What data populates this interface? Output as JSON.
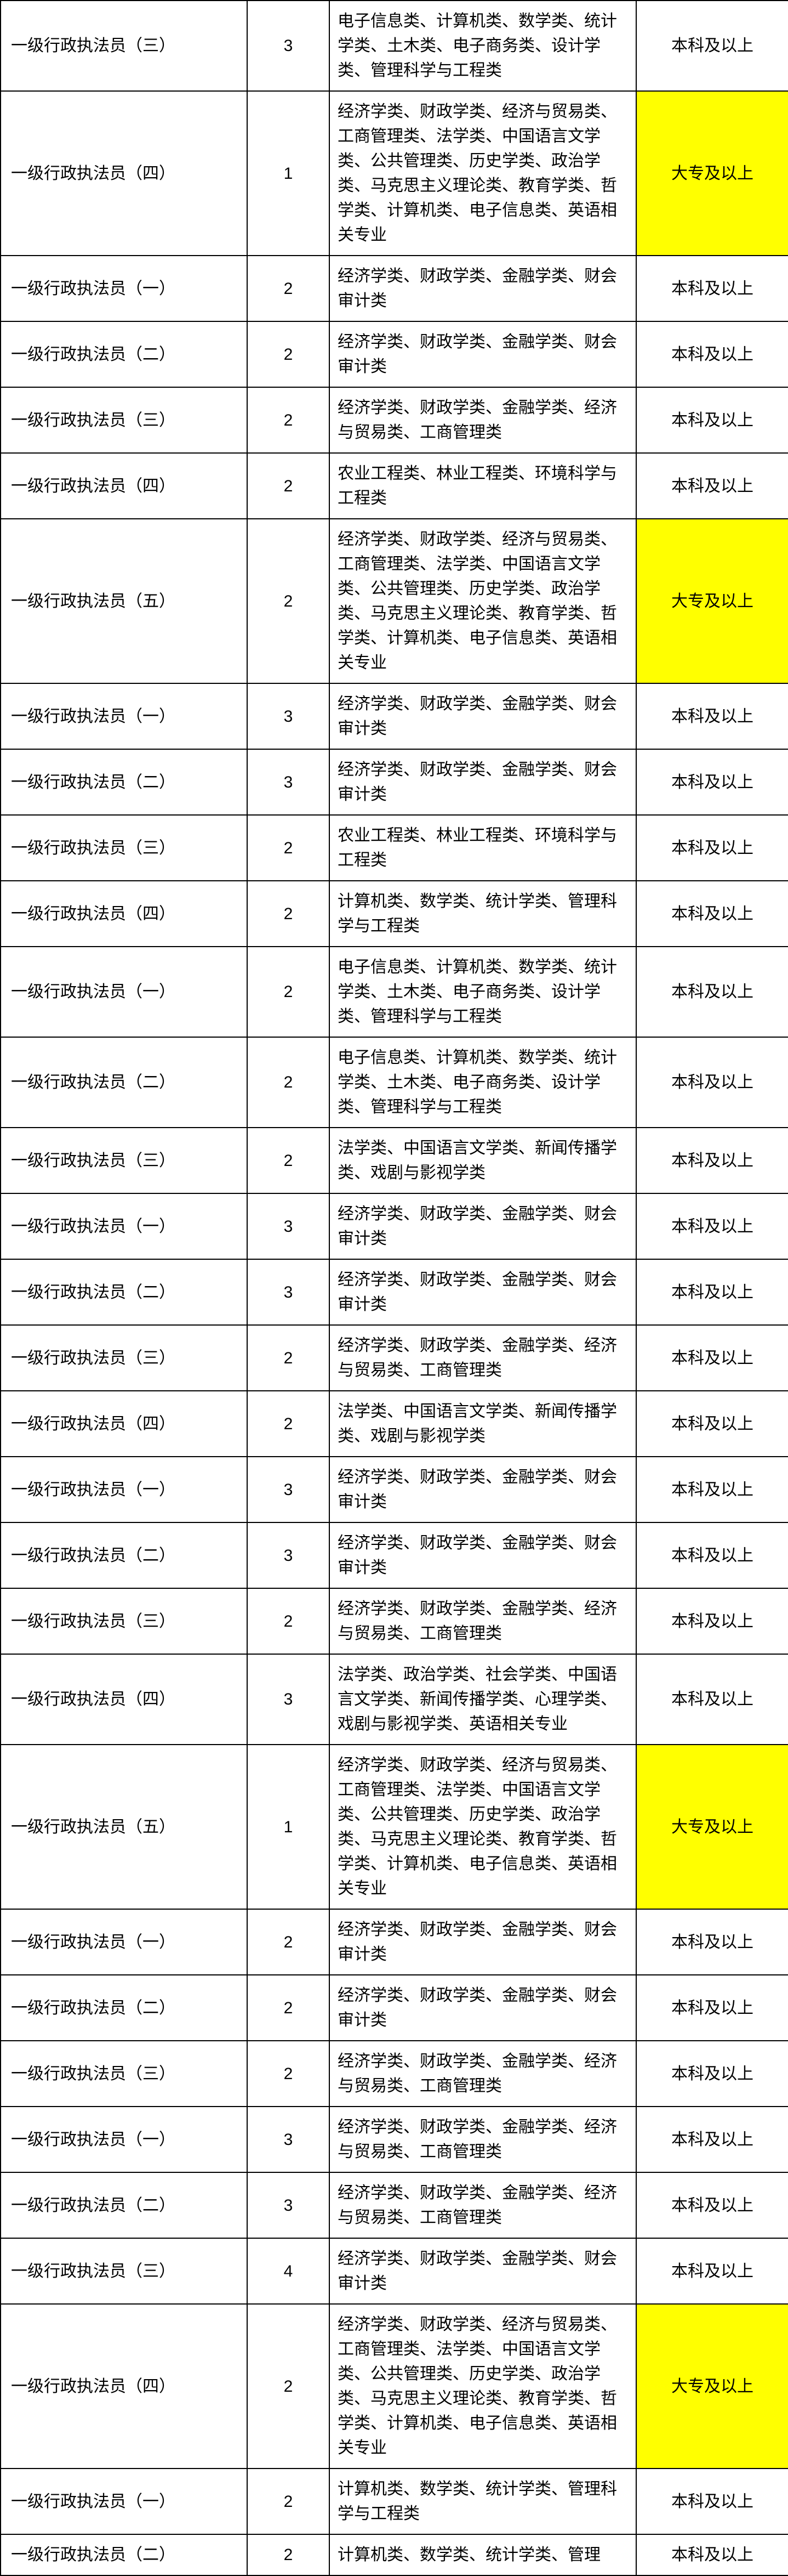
{
  "rows": [
    {
      "position": "一级行政执法员（三）",
      "count": "3",
      "majors": "电子信息类、计算机类、数学类、统计学类、土木类、电子商务类、设计学类、管理科学与工程类",
      "edu": "本科及以上",
      "highlight": false
    },
    {
      "position": "一级行政执法员（四）",
      "count": "1",
      "majors": "经济学类、财政学类、经济与贸易类、工商管理类、法学类、中国语言文学类、公共管理类、历史学类、政治学类、马克思主义理论类、教育学类、哲学类、计算机类、电子信息类、英语相关专业",
      "edu": "大专及以上",
      "highlight": true
    },
    {
      "position": "一级行政执法员（一）",
      "count": "2",
      "majors": "经济学类、财政学类、金融学类、财会审计类",
      "edu": "本科及以上",
      "highlight": false
    },
    {
      "position": "一级行政执法员（二）",
      "count": "2",
      "majors": "经济学类、财政学类、金融学类、财会审计类",
      "edu": "本科及以上",
      "highlight": false
    },
    {
      "position": "一级行政执法员（三）",
      "count": "2",
      "majors": "经济学类、财政学类、金融学类、经济与贸易类、工商管理类",
      "edu": "本科及以上",
      "highlight": false
    },
    {
      "position": "一级行政执法员（四）",
      "count": "2",
      "majors": "农业工程类、林业工程类、环境科学与工程类",
      "edu": "本科及以上",
      "highlight": false
    },
    {
      "position": "一级行政执法员（五）",
      "count": "2",
      "majors": "经济学类、财政学类、经济与贸易类、工商管理类、法学类、中国语言文学类、公共管理类、历史学类、政治学类、马克思主义理论类、教育学类、哲学类、计算机类、电子信息类、英语相关专业",
      "edu": "大专及以上",
      "highlight": true
    },
    {
      "position": "一级行政执法员（一）",
      "count": "3",
      "majors": "经济学类、财政学类、金融学类、财会审计类",
      "edu": "本科及以上",
      "highlight": false
    },
    {
      "position": "一级行政执法员（二）",
      "count": "3",
      "majors": "经济学类、财政学类、金融学类、财会审计类",
      "edu": "本科及以上",
      "highlight": false
    },
    {
      "position": "一级行政执法员（三）",
      "count": "2",
      "majors": "农业工程类、林业工程类、环境科学与工程类",
      "edu": "本科及以上",
      "highlight": false
    },
    {
      "position": "一级行政执法员（四）",
      "count": "2",
      "majors": "计算机类、数学类、统计学类、管理科学与工程类",
      "edu": "本科及以上",
      "highlight": false
    },
    {
      "position": "一级行政执法员（一）",
      "count": "2",
      "majors": "电子信息类、计算机类、数学类、统计学类、土木类、电子商务类、设计学类、管理科学与工程类",
      "edu": "本科及以上",
      "highlight": false
    },
    {
      "position": "一级行政执法员（二）",
      "count": "2",
      "majors": "电子信息类、计算机类、数学类、统计学类、土木类、电子商务类、设计学类、管理科学与工程类",
      "edu": "本科及以上",
      "highlight": false
    },
    {
      "position": "一级行政执法员（三）",
      "count": "2",
      "majors": "法学类、中国语言文学类、新闻传播学类、戏剧与影视学类",
      "edu": "本科及以上",
      "highlight": false
    },
    {
      "position": "一级行政执法员（一）",
      "count": "3",
      "majors": "经济学类、财政学类、金融学类、财会审计类",
      "edu": "本科及以上",
      "highlight": false
    },
    {
      "position": "一级行政执法员（二）",
      "count": "3",
      "majors": "经济学类、财政学类、金融学类、财会审计类",
      "edu": "本科及以上",
      "highlight": false
    },
    {
      "position": "一级行政执法员（三）",
      "count": "2",
      "majors": "经济学类、财政学类、金融学类、经济与贸易类、工商管理类",
      "edu": "本科及以上",
      "highlight": false
    },
    {
      "position": "一级行政执法员（四）",
      "count": "2",
      "majors": "法学类、中国语言文学类、新闻传播学类、戏剧与影视学类",
      "edu": "本科及以上",
      "highlight": false
    },
    {
      "position": "一级行政执法员（一）",
      "count": "3",
      "majors": "经济学类、财政学类、金融学类、财会审计类",
      "edu": "本科及以上",
      "highlight": false
    },
    {
      "position": "一级行政执法员（二）",
      "count": "3",
      "majors": "经济学类、财政学类、金融学类、财会审计类",
      "edu": "本科及以上",
      "highlight": false
    },
    {
      "position": "一级行政执法员（三）",
      "count": "2",
      "majors": "经济学类、财政学类、金融学类、经济与贸易类、工商管理类",
      "edu": "本科及以上",
      "highlight": false
    },
    {
      "position": "一级行政执法员（四）",
      "count": "3",
      "majors": "法学类、政治学类、社会学类、中国语言文学类、新闻传播学类、心理学类、戏剧与影视学类、英语相关专业",
      "edu": "本科及以上",
      "highlight": false
    },
    {
      "position": "一级行政执法员（五）",
      "count": "1",
      "majors": "经济学类、财政学类、经济与贸易类、工商管理类、法学类、中国语言文学类、公共管理类、历史学类、政治学类、马克思主义理论类、教育学类、哲学类、计算机类、电子信息类、英语相关专业",
      "edu": "大专及以上",
      "highlight": true
    },
    {
      "position": "一级行政执法员（一）",
      "count": "2",
      "majors": "经济学类、财政学类、金融学类、财会审计类",
      "edu": "本科及以上",
      "highlight": false
    },
    {
      "position": "一级行政执法员（二）",
      "count": "2",
      "majors": "经济学类、财政学类、金融学类、财会审计类",
      "edu": "本科及以上",
      "highlight": false
    },
    {
      "position": "一级行政执法员（三）",
      "count": "2",
      "majors": "经济学类、财政学类、金融学类、经济与贸易类、工商管理类",
      "edu": "本科及以上",
      "highlight": false
    },
    {
      "position": "一级行政执法员（一）",
      "count": "3",
      "majors": "经济学类、财政学类、金融学类、经济与贸易类、工商管理类",
      "edu": "本科及以上",
      "highlight": false
    },
    {
      "position": "一级行政执法员（二）",
      "count": "3",
      "majors": "经济学类、财政学类、金融学类、经济与贸易类、工商管理类",
      "edu": "本科及以上",
      "highlight": false
    },
    {
      "position": "一级行政执法员（三）",
      "count": "4",
      "majors": "经济学类、财政学类、金融学类、财会审计类",
      "edu": "本科及以上",
      "highlight": false
    },
    {
      "position": "一级行政执法员（四）",
      "count": "2",
      "majors": "经济学类、财政学类、经济与贸易类、工商管理类、法学类、中国语言文学类、公共管理类、历史学类、政治学类、马克思主义理论类、教育学类、哲学类、计算机类、电子信息类、英语相关专业",
      "edu": "大专及以上",
      "highlight": true
    },
    {
      "position": "一级行政执法员（一）",
      "count": "2",
      "majors": "计算机类、数学类、统计学类、管理科学与工程类",
      "edu": "本科及以上",
      "highlight": false
    },
    {
      "position": "一级行政执法员（二）",
      "count": "2",
      "majors": "计算机类、数学类、统计学类、管理",
      "edu": "本科及以上",
      "highlight": false
    }
  ]
}
